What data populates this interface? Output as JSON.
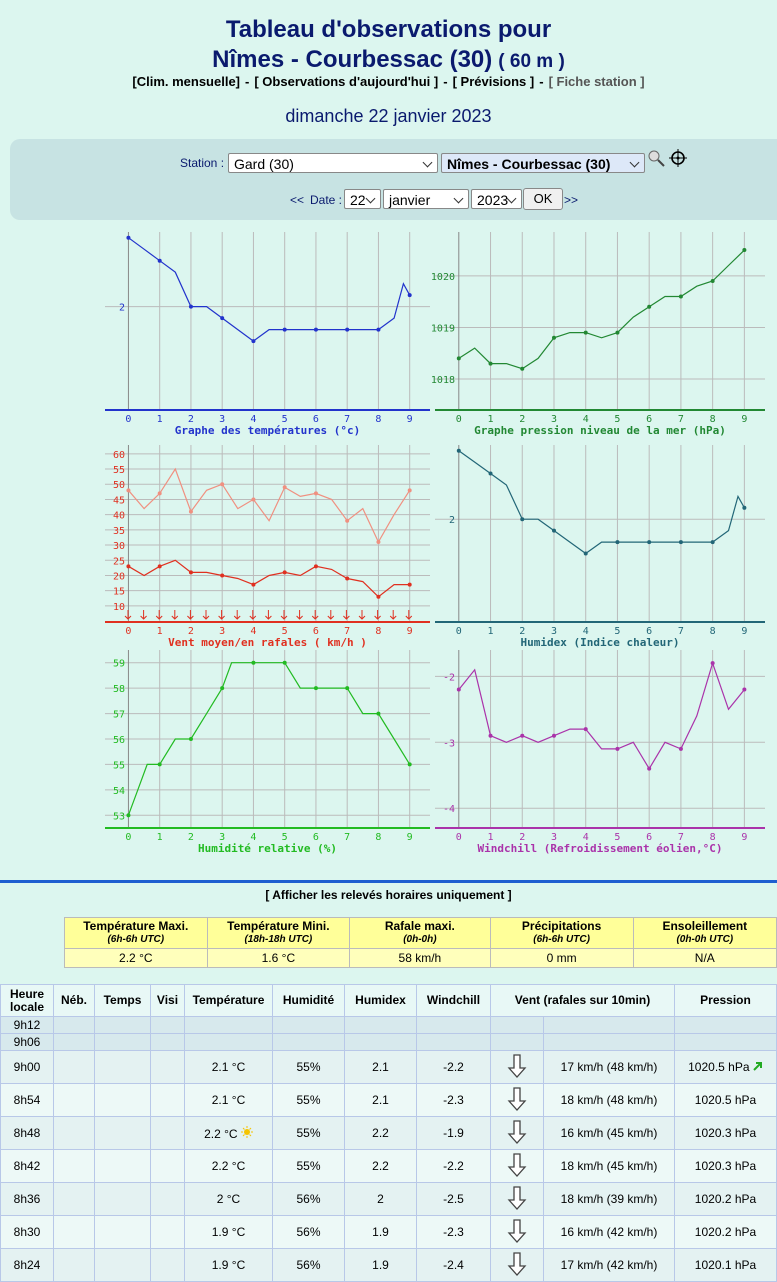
{
  "header": {
    "title": "Tableau d'observations pour",
    "station": "Nîmes - Courbessac (30)",
    "altitude": "( 60 m )",
    "nav": {
      "items": [
        "[Clim. mensuelle]",
        "[ Observations d'aujourd'hui ]",
        "[ Prévisions ]",
        "[ Fiche station ]"
      ],
      "separator": "-"
    },
    "date": "dimanche 22 janvier 2023"
  },
  "form": {
    "station_label": "Station :",
    "region": "Gard (30)",
    "station": "Nîmes - Courbessac (30)",
    "prev": "<<",
    "date_label": "Date :",
    "day": "22",
    "month": "janvier",
    "year": "2023",
    "ok": "OK",
    "next": ">>"
  },
  "chart_data": [
    {
      "type": "line",
      "xlabel": "Graphe des températures (°c)",
      "x": [
        0,
        0.5,
        1,
        1.5,
        2,
        2.5,
        3,
        3.5,
        4,
        4.5,
        5,
        5.5,
        6,
        6.5,
        7,
        7.5,
        8,
        8.5,
        8.8,
        9
      ],
      "series": [
        {
          "color": "#2233cc",
          "values": [
            2.6,
            2.5,
            2.4,
            2.3,
            2.0,
            2.0,
            1.9,
            1.8,
            1.7,
            1.8,
            1.8,
            1.8,
            1.8,
            1.8,
            1.8,
            1.8,
            1.8,
            1.9,
            2.2,
            2.1
          ]
        }
      ],
      "xlim": [
        -0.75,
        9.65
      ],
      "xticks": [
        0,
        1,
        2,
        3,
        4,
        5,
        6,
        7,
        8,
        9
      ],
      "ylim": [
        1.1,
        2.65
      ],
      "yticks": [
        2
      ]
    },
    {
      "type": "line",
      "xlabel": "Graphe pression niveau de la mer (hPa)",
      "x": [
        0,
        0.5,
        1,
        1.5,
        2,
        2.5,
        3,
        3.5,
        4,
        4.5,
        5,
        5.5,
        6,
        6.5,
        7,
        7.5,
        8,
        8.5,
        9
      ],
      "series": [
        {
          "color": "#228833",
          "values": [
            1018.4,
            1018.6,
            1018.3,
            1018.3,
            1018.2,
            1018.4,
            1018.8,
            1018.9,
            1018.9,
            1018.8,
            1018.9,
            1019.2,
            1019.4,
            1019.6,
            1019.6,
            1019.8,
            1019.9,
            1020.2,
            1020.5
          ]
        }
      ],
      "xlim": [
        -0.75,
        9.65
      ],
      "xticks": [
        0,
        1,
        2,
        3,
        4,
        5,
        6,
        7,
        8,
        9
      ],
      "ylim": [
        1017.4,
        1020.85
      ],
      "yticks": [
        1018,
        1019,
        1020
      ]
    },
    {
      "type": "line",
      "xlabel": "Vent moyen/en rafales ( km/h )",
      "x": [
        0,
        0.5,
        1,
        1.5,
        2,
        2.5,
        3,
        3.5,
        4,
        4.5,
        5,
        5.5,
        6,
        6.5,
        7,
        7.5,
        8,
        8.5,
        9
      ],
      "series": [
        {
          "color": "#e03020",
          "values": [
            23,
            20,
            23,
            25,
            21,
            21,
            20,
            19,
            17,
            20,
            21,
            20,
            23,
            22,
            19,
            18,
            13,
            17,
            17
          ]
        },
        {
          "color": "#f09080",
          "values": [
            48,
            42,
            47,
            55,
            41,
            48,
            50,
            42,
            45,
            38,
            49,
            46,
            47,
            45,
            38,
            42,
            31,
            40,
            48
          ]
        }
      ],
      "xlim": [
        -0.75,
        9.65
      ],
      "xticks": [
        0,
        1,
        2,
        3,
        4,
        5,
        6,
        7,
        8,
        9
      ],
      "ylim": [
        4.7,
        62.9
      ],
      "yticks": [
        10,
        15,
        20,
        25,
        30,
        35,
        40,
        45,
        50,
        55,
        60
      ]
    },
    {
      "type": "line",
      "xlabel": "Humidex (Indice chaleur)",
      "x": [
        0,
        0.5,
        1,
        1.5,
        2,
        2.5,
        3,
        3.5,
        4,
        4.5,
        5,
        5.5,
        6,
        6.5,
        7,
        7.5,
        8,
        8.5,
        8.8,
        9
      ],
      "series": [
        {
          "color": "#226677",
          "values": [
            2.6,
            2.5,
            2.4,
            2.3,
            2.0,
            2.0,
            1.9,
            1.8,
            1.7,
            1.8,
            1.8,
            1.8,
            1.8,
            1.8,
            1.8,
            1.8,
            1.8,
            1.9,
            2.2,
            2.1
          ]
        }
      ],
      "xlim": [
        -0.75,
        9.65
      ],
      "xticks": [
        0,
        1,
        2,
        3,
        4,
        5,
        6,
        7,
        8,
        9
      ],
      "ylim": [
        1.1,
        2.65
      ],
      "yticks": [
        2
      ]
    },
    {
      "type": "line",
      "xlabel": "Humidité relative (%)",
      "x": [
        0,
        0.3,
        0.6,
        1,
        1.5,
        2,
        2.5,
        3,
        3.3,
        4,
        5,
        5.5,
        6,
        7,
        7.5,
        8,
        8.5,
        9
      ],
      "series": [
        {
          "color": "#22bb22",
          "values": [
            53,
            54,
            55,
            55,
            56,
            56,
            57,
            58,
            59,
            59,
            59,
            58,
            58,
            58,
            57,
            57,
            56,
            55
          ]
        }
      ],
      "xlim": [
        -0.75,
        9.65
      ],
      "xticks": [
        0,
        1,
        2,
        3,
        4,
        5,
        6,
        7,
        8,
        9
      ],
      "ylim": [
        52.5,
        59.5
      ],
      "yticks": [
        53,
        54,
        55,
        56,
        57,
        58,
        59
      ]
    },
    {
      "type": "line",
      "xlabel": "Windchill (Refroidissement éolien,°C)",
      "x": [
        0,
        0.5,
        1,
        1.5,
        2,
        2.5,
        3,
        3.5,
        4,
        4.5,
        5,
        5.5,
        6,
        6.5,
        7,
        7.5,
        8,
        8.5,
        9
      ],
      "series": [
        {
          "color": "#aa33aa",
          "values": [
            -2.2,
            -1.9,
            -2.9,
            -3.0,
            -2.9,
            -3.0,
            -2.9,
            -2.8,
            -2.8,
            -3.1,
            -3.1,
            -3.0,
            -3.4,
            -3.0,
            -3.1,
            -2.6,
            -1.8,
            -2.5,
            -2.2
          ]
        }
      ],
      "xlim": [
        -0.75,
        9.65
      ],
      "xticks": [
        0,
        1,
        2,
        3,
        4,
        5,
        6,
        7,
        8,
        9
      ],
      "ylim": [
        -4.3,
        -1.6
      ],
      "yticks": [
        -2,
        -3,
        -4
      ]
    }
  ],
  "link": "[ Afficher les relevés horaires uniquement ]",
  "summary": {
    "headers": [
      {
        "title": "Température Maxi.",
        "sub": "(6h-6h UTC)"
      },
      {
        "title": "Température Mini.",
        "sub": "(18h-18h UTC)"
      },
      {
        "title": "Rafale maxi.",
        "sub": "(0h-0h)"
      },
      {
        "title": "Précipitations",
        "sub": "(6h-6h UTC)"
      },
      {
        "title": "Ensoleillement",
        "sub": "(0h-0h UTC)"
      }
    ],
    "values": [
      "2.2 °C",
      "1.6 °C",
      "58 km/h",
      "0 mm",
      "N/A"
    ]
  },
  "observations": {
    "headers": [
      "Heure locale",
      "Néb.",
      "Temps",
      "Visi",
      "Température",
      "Humidité",
      "Humidex",
      "Windchill",
      "Vent (rafales sur 10min)",
      "Pression"
    ],
    "rows": [
      {
        "time": "9h12"
      },
      {
        "time": "9h06"
      },
      {
        "time": "9h00",
        "temp": "2.1 °C",
        "hum": "55%",
        "humidex": "2.1",
        "windchill": "-2.2",
        "wind": "17 km/h (48 km/h)",
        "pressure": "1020.5 hPa"
      },
      {
        "time": "8h54",
        "temp": "2.1 °C",
        "hum": "55%",
        "humidex": "2.1",
        "windchill": "-2.3",
        "wind": "18 km/h (48 km/h)",
        "pressure": "1020.5 hPa"
      },
      {
        "time": "8h48",
        "temp": "2.2 °C",
        "hum": "55%",
        "humidex": "2.2",
        "windchill": "-1.9",
        "wind": "16 km/h (45 km/h)",
        "pressure": "1020.3 hPa"
      },
      {
        "time": "8h42",
        "temp": "2.2 °C",
        "hum": "55%",
        "humidex": "2.2",
        "windchill": "-2.2",
        "wind": "18 km/h (45 km/h)",
        "pressure": "1020.3 hPa"
      },
      {
        "time": "8h36",
        "temp": "2 °C",
        "hum": "56%",
        "humidex": "2",
        "windchill": "-2.5",
        "wind": "18 km/h (39 km/h)",
        "pressure": "1020.2 hPa"
      },
      {
        "time": "8h30",
        "temp": "1.9 °C",
        "hum": "56%",
        "humidex": "1.9",
        "windchill": "-2.3",
        "wind": "16 km/h (42 km/h)",
        "pressure": "1020.2 hPa"
      },
      {
        "time": "8h24",
        "temp": "1.9 °C",
        "hum": "56%",
        "humidex": "1.9",
        "windchill": "-2.4",
        "wind": "17 km/h (42 km/h)",
        "pressure": "1020.1 hPa"
      }
    ]
  }
}
